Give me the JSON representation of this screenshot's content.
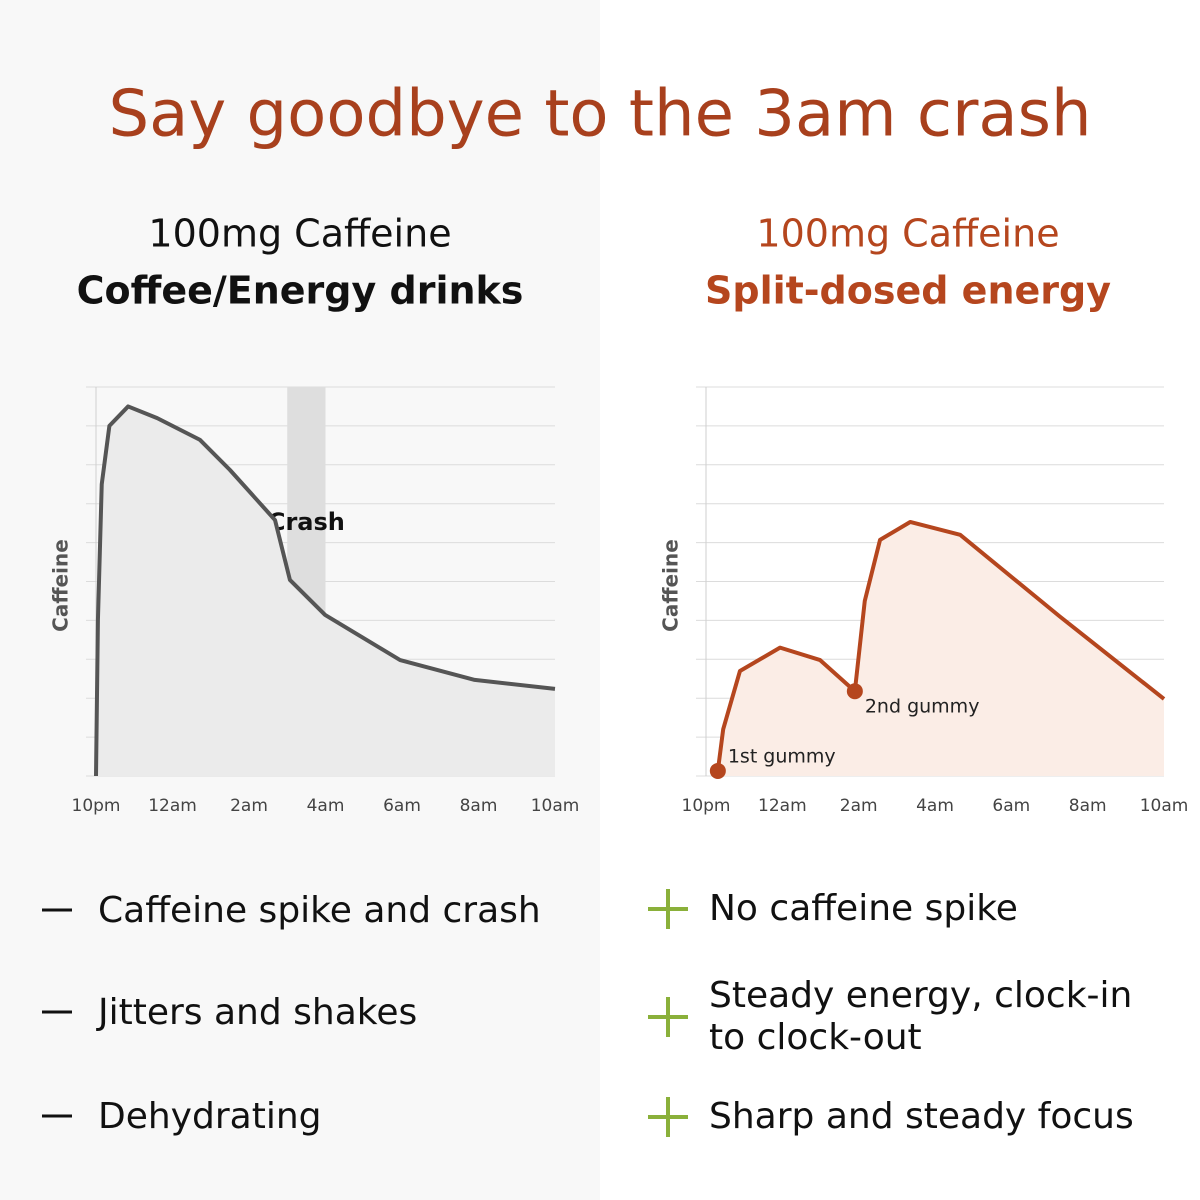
{
  "title": "Say goodbye to the 3am crash",
  "chart_data": [
    {
      "type": "area",
      "subtitle": "100mg Caffeine",
      "label": "Coffee/Energy drinks",
      "ylabel": "Caffeine",
      "x": [
        0,
        0.05,
        0.15,
        0.35,
        0.84,
        1.6,
        2.72,
        3.5,
        4.68,
        5.07,
        5.99,
        7.95,
        9.9,
        12
      ],
      "values": [
        0,
        4,
        7.5,
        9.0,
        9.5,
        9.2,
        8.64,
        7.87,
        6.58,
        5.04,
        4.14,
        2.98,
        2.47,
        2.24
      ],
      "color": "#555555",
      "fill": "#ebebeb",
      "xlim": [
        0,
        12
      ],
      "ylim": [
        0,
        10
      ],
      "xticks": [
        {
          "value": 0,
          "label": "10pm"
        },
        {
          "value": 2,
          "label": "12am"
        },
        {
          "value": 4,
          "label": "2am"
        },
        {
          "value": 6,
          "label": "4am"
        },
        {
          "value": 8,
          "label": "6am"
        },
        {
          "value": 10,
          "label": "8am"
        },
        {
          "value": 12,
          "label": "10am"
        }
      ],
      "ygrid": [
        0,
        1,
        2,
        3,
        4,
        5,
        6,
        7,
        8,
        9,
        10
      ],
      "band": {
        "x": [
          5,
          6
        ],
        "label": "Crash"
      }
    },
    {
      "type": "area",
      "subtitle": "100mg Caffeine",
      "label": "Split-dosed energy",
      "ylabel": "Caffeine",
      "x": [
        0.31,
        0.45,
        0.89,
        1.94,
        2.99,
        3.9,
        4.16,
        4.56,
        5.35,
        6.66,
        9.27,
        12
      ],
      "values": [
        0.13,
        1.2,
        2.7,
        3.3,
        2.98,
        2.18,
        4.5,
        6.07,
        6.53,
        6.2,
        4.1,
        1.98
      ],
      "color": "#b5461e",
      "fill": "#fbede6",
      "xlim": [
        0,
        12
      ],
      "ylim": [
        0,
        10
      ],
      "xticks": [
        {
          "value": 0,
          "label": "10pm"
        },
        {
          "value": 2,
          "label": "12am"
        },
        {
          "value": 4,
          "label": "2am"
        },
        {
          "value": 6,
          "label": "4am"
        },
        {
          "value": 8,
          "label": "6am"
        },
        {
          "value": 10,
          "label": "8am"
        },
        {
          "value": 12,
          "label": "10am"
        }
      ],
      "ygrid": [
        0,
        1,
        2,
        3,
        4,
        5,
        6,
        7,
        8,
        9,
        10
      ],
      "markers": [
        {
          "x": 0.31,
          "y": 0.13,
          "label": "1st gummy"
        },
        {
          "x": 3.9,
          "y": 2.18,
          "label": "2nd gummy"
        }
      ]
    }
  ],
  "cons": [
    "Caffeine spike and crash",
    "Jitters and shakes",
    "Dehydrating"
  ],
  "pros": [
    "No caffeine spike",
    "Steady energy, clock-in to clock-out",
    "Sharp and steady focus"
  ]
}
